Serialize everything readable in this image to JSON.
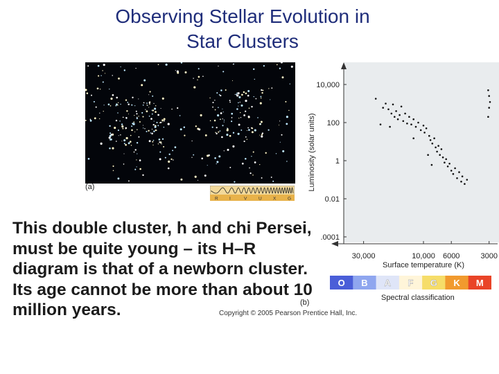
{
  "slide": {
    "title_line_1": "Observing Stellar Evolution in",
    "title_line_2": "Star Clusters",
    "body_text": "This double cluster, h and chi Persei, must be quite young – its H–R diagram is that of a newborn cluster. Its age cannot be more than about 10 million years.",
    "label_a": "(a)",
    "label_b": "(b)",
    "copyright": "Copyright © 2005 Pearson Prentice Hall, Inc."
  },
  "filters": [
    "R",
    "I",
    "V",
    "U",
    "X",
    "G"
  ],
  "spectral": {
    "label": "Spectral classification",
    "classes": [
      "O",
      "B",
      "A",
      "F",
      "G",
      "K",
      "M"
    ],
    "colors": [
      "#4a5ed8",
      "#8fa6ef",
      "#dfe5f8",
      "#fff5d9",
      "#f6dd69",
      "#f19a2e",
      "#e94428"
    ]
  },
  "chart_data": {
    "type": "scatter",
    "xlabel": "Surface temperature (K)",
    "ylabel": "Luminosity (solar units)",
    "x_ticks": [
      "30,000",
      "10,000",
      "6000",
      "3000"
    ],
    "x_tick_values": [
      30000,
      10000,
      6000,
      3000
    ],
    "y_ticks": [
      "10,000",
      "100",
      "1",
      "0.01",
      ".0001"
    ],
    "y_tick_values": [
      10000,
      100,
      1,
      0.01,
      0.0001
    ],
    "y_scale": "log",
    "x_scale": "log-reversed",
    "xlim": [
      40000,
      2700
    ],
    "ylim": [
      0.0001,
      10000
    ],
    "points": [
      [
        24000,
        1800
      ],
      [
        21000,
        600
      ],
      [
        20000,
        1000
      ],
      [
        19000,
        500
      ],
      [
        18000,
        300
      ],
      [
        17500,
        900
      ],
      [
        17000,
        200
      ],
      [
        16500,
        400
      ],
      [
        16000,
        150
      ],
      [
        15500,
        250
      ],
      [
        15000,
        700
      ],
      [
        14500,
        120
      ],
      [
        14000,
        300
      ],
      [
        13500,
        90
      ],
      [
        13000,
        200
      ],
      [
        12500,
        80
      ],
      [
        12000,
        150
      ],
      [
        11500,
        60
      ],
      [
        11000,
        100
      ],
      [
        10500,
        40
      ],
      [
        10000,
        70
      ],
      [
        9800,
        30
      ],
      [
        9500,
        50
      ],
      [
        9000,
        20
      ],
      [
        8800,
        12
      ],
      [
        8500,
        8
      ],
      [
        8200,
        15
      ],
      [
        8000,
        5
      ],
      [
        7800,
        3
      ],
      [
        7600,
        6
      ],
      [
        7400,
        2
      ],
      [
        7200,
        4
      ],
      [
        7000,
        1.5
      ],
      [
        6800,
        0.8
      ],
      [
        6600,
        1.2
      ],
      [
        6400,
        0.5
      ],
      [
        6200,
        0.7
      ],
      [
        6000,
        0.3
      ],
      [
        5800,
        0.2
      ],
      [
        5600,
        0.4
      ],
      [
        5400,
        0.12
      ],
      [
        5200,
        0.25
      ],
      [
        5000,
        0.08
      ],
      [
        4900,
        0.15
      ],
      [
        4700,
        0.06
      ],
      [
        4500,
        0.1
      ],
      [
        22000,
        80
      ],
      [
        18500,
        60
      ],
      [
        12000,
        15
      ],
      [
        9200,
        2
      ],
      [
        8600,
        0.6
      ],
      [
        3050,
        5000
      ],
      [
        3000,
        2500
      ],
      [
        2950,
        1200
      ],
      [
        3000,
        600
      ],
      [
        3050,
        200
      ]
    ]
  }
}
